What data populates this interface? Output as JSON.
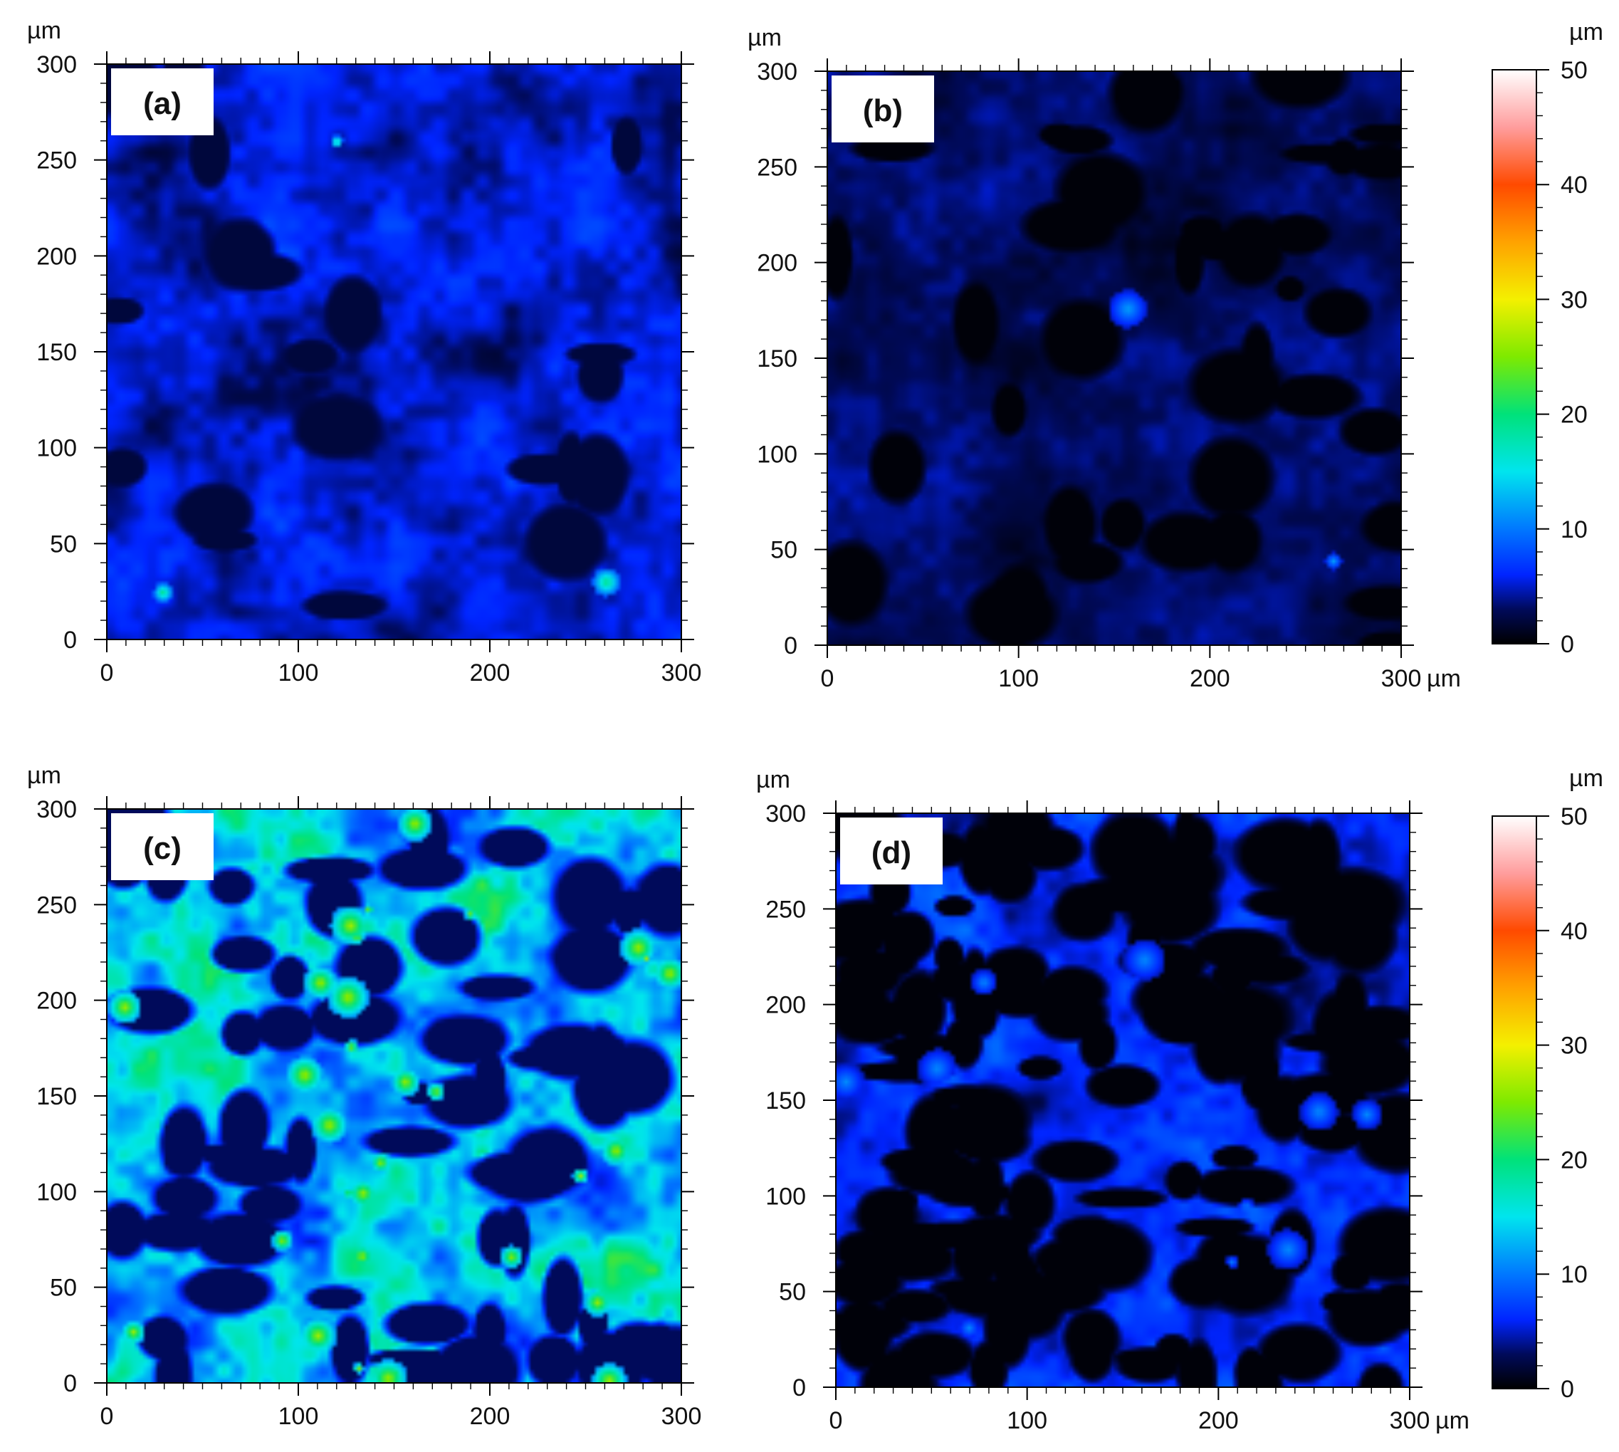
{
  "colorbar": {
    "unit": "µm",
    "min": 0,
    "max": 50,
    "ticks": [
      0,
      10,
      20,
      30,
      40,
      50
    ],
    "colormap": [
      {
        "value": 0,
        "color": "#000000"
      },
      {
        "value": 3,
        "color": "#000a5a"
      },
      {
        "value": 6,
        "color": "#0024ff"
      },
      {
        "value": 10,
        "color": "#0078ff"
      },
      {
        "value": 15,
        "color": "#00e5ee"
      },
      {
        "value": 20,
        "color": "#00e27a"
      },
      {
        "value": 25,
        "color": "#7eea00"
      },
      {
        "value": 30,
        "color": "#f4f000"
      },
      {
        "value": 35,
        "color": "#ffa200"
      },
      {
        "value": 40,
        "color": "#ff4a00"
      },
      {
        "value": 45,
        "color": "#ff9d9d"
      },
      {
        "value": 50,
        "color": "#ffffff"
      }
    ]
  },
  "chart_data": [
    {
      "type": "heatmap",
      "panel_label": "(a)",
      "x_unit": "",
      "y_unit": "µm",
      "xlim": [
        0,
        300
      ],
      "ylim": [
        0,
        300
      ],
      "x_ticks": [
        0,
        100,
        200,
        300
      ],
      "y_ticks": [
        0,
        50,
        100,
        150,
        200,
        250,
        300
      ],
      "zlim": [
        0,
        50
      ],
      "base_level": 5,
      "pit_level": 2,
      "pit_count": 20,
      "bright_spots": 3,
      "bright_level": 20
    },
    {
      "type": "heatmap",
      "panel_label": "(b)",
      "x_unit": "µm",
      "y_unit": "µm",
      "xlim": [
        0,
        300
      ],
      "ylim": [
        0,
        300
      ],
      "x_ticks": [
        0,
        100,
        200,
        300
      ],
      "y_ticks": [
        0,
        50,
        100,
        150,
        200,
        250,
        300
      ],
      "zlim": [
        0,
        50
      ],
      "base_level": 3,
      "pit_level": 0.3,
      "pit_count": 42,
      "bright_spots": 2,
      "bright_level": 12
    },
    {
      "type": "heatmap",
      "panel_label": "(c)",
      "x_unit": "",
      "y_unit": "µm",
      "xlim": [
        0,
        300
      ],
      "ylim": [
        0,
        300
      ],
      "x_ticks": [
        0,
        100,
        200,
        300
      ],
      "y_ticks": [
        0,
        50,
        100,
        150,
        200,
        250,
        300
      ],
      "zlim": [
        0,
        50
      ],
      "base_level": 14,
      "pit_level": 3,
      "pit_count": 70,
      "bright_spots": 30,
      "bright_level": 27
    },
    {
      "type": "heatmap",
      "panel_label": "(d)",
      "x_unit": "µm",
      "y_unit": "µm",
      "xlim": [
        0,
        300
      ],
      "ylim": [
        0,
        300
      ],
      "x_ticks": [
        0,
        100,
        200,
        300
      ],
      "y_ticks": [
        0,
        50,
        100,
        150,
        200,
        250,
        300
      ],
      "zlim": [
        0,
        50
      ],
      "base_level": 6,
      "pit_level": 0.3,
      "pit_count": 150,
      "bright_spots": 10,
      "bright_level": 11
    }
  ]
}
